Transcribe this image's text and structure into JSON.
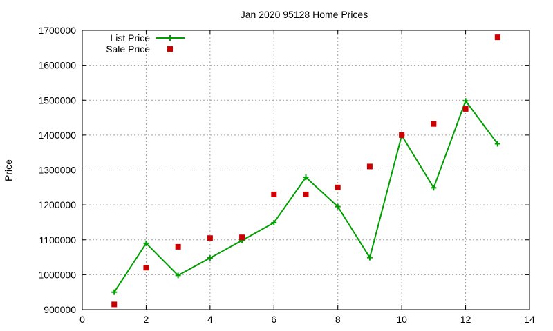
{
  "chart_data": {
    "type": "line",
    "title": "Jan 2020 95128 Home Prices",
    "xlabel": "",
    "ylabel": "Price",
    "xlim": [
      0,
      14
    ],
    "ylim": [
      900000,
      1700000
    ],
    "x_ticks": [
      0,
      2,
      4,
      6,
      8,
      10,
      12,
      14
    ],
    "y_ticks": [
      900000,
      1000000,
      1100000,
      1200000,
      1300000,
      1400000,
      1500000,
      1600000,
      1700000
    ],
    "x_tick_labels": [
      "0",
      "2",
      "4",
      "6",
      "8",
      "10",
      "12",
      "14"
    ],
    "y_tick_labels": [
      "900000",
      "1000000",
      "1100000",
      "1200000",
      "1300000",
      "1400000",
      "1500000",
      "1600000",
      "1700000"
    ],
    "grid": true,
    "legend_position": "top-left",
    "series": [
      {
        "name": "List Price",
        "style": "line-with-plus-markers",
        "color": "#009e00",
        "x": [
          1,
          2,
          3,
          4,
          5,
          6,
          7,
          8,
          9,
          10,
          11,
          12,
          13
        ],
        "y": [
          950000,
          1090000,
          998000,
          1048000,
          1098000,
          1149000,
          1279000,
          1195000,
          1049000,
          1399000,
          1249000,
          1498000,
          1375000
        ]
      },
      {
        "name": "Sale Price",
        "style": "square-markers",
        "color": "#cc0000",
        "x": [
          1,
          2,
          3,
          4,
          5,
          6,
          7,
          8,
          9,
          10,
          11,
          12,
          13
        ],
        "y": [
          915000,
          1020000,
          1080000,
          1105000,
          1107000,
          1230000,
          1230000,
          1250000,
          1310000,
          1400000,
          1432000,
          1475000,
          1680000
        ]
      }
    ]
  }
}
